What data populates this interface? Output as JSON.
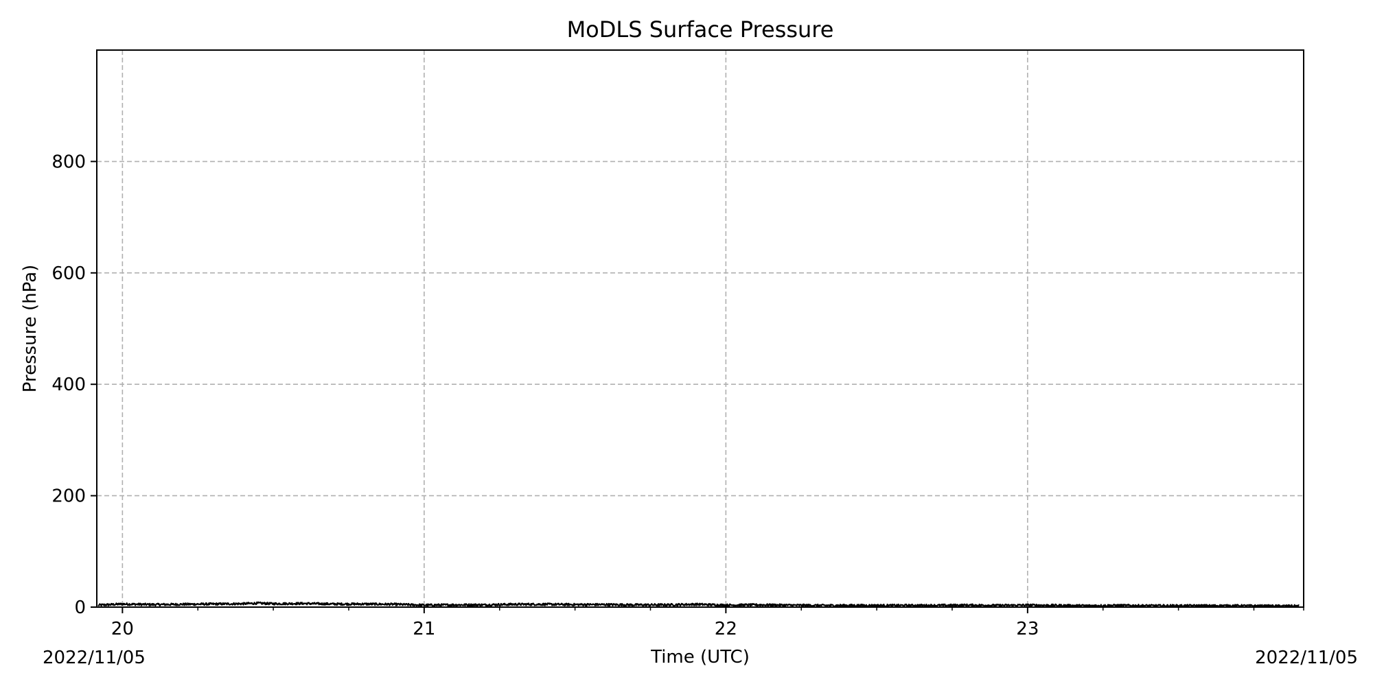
{
  "chart_data": {
    "type": "line",
    "title": "MoDLS Surface Pressure",
    "xlabel": "Time (UTC)",
    "ylabel": "Pressure (hPa)",
    "x_unit": "hour (UTC)",
    "xlim": [
      19.915,
      23.915
    ],
    "ylim": [
      0,
      1000
    ],
    "x_major_ticks": [
      20,
      21,
      22,
      23
    ],
    "x_major_tick_labels": [
      "20",
      "21",
      "22",
      "23"
    ],
    "x_minor_step": 0.25,
    "y_ticks": [
      0,
      200,
      400,
      600,
      800
    ],
    "y_tick_labels": [
      "0",
      "200",
      "400",
      "600",
      "800"
    ],
    "date_labels": {
      "start": "2022/11/05",
      "end": "2022/11/05"
    },
    "grid": true,
    "grid_style": "dashed",
    "line_color": "#000000",
    "grid_color": "#b0b0b0",
    "series": [
      {
        "x": [
          19.92,
          20.0,
          20.1,
          20.2,
          20.3,
          20.4,
          20.45,
          20.5,
          20.6,
          20.7,
          20.8,
          20.9,
          21.0,
          21.1,
          21.2,
          21.3,
          21.4,
          21.5,
          21.6,
          21.7,
          21.8,
          21.9,
          22.0,
          22.1,
          22.2,
          22.3,
          22.4,
          22.5,
          22.6,
          22.7,
          22.8,
          22.9,
          23.0,
          23.1,
          23.2,
          23.3,
          23.4,
          23.5,
          23.6,
          23.7,
          23.8,
          23.9
        ],
        "values": [
          3.5,
          5.5,
          4.5,
          5,
          5.5,
          6,
          7,
          6,
          6.5,
          5.5,
          5.5,
          5,
          3.5,
          4,
          4,
          5,
          5,
          4.5,
          4.5,
          4,
          4,
          5,
          3.5,
          4,
          3.5,
          3,
          3,
          3,
          3,
          3,
          3.5,
          3,
          3.5,
          3,
          2.5,
          3,
          2.5,
          2.5,
          2.5,
          2.5,
          2,
          2
        ],
        "noise_amplitude": 2
      }
    ]
  }
}
